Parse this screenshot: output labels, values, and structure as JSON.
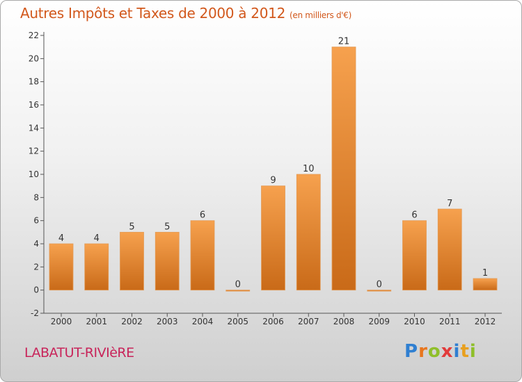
{
  "header": {
    "title": "Autres Impôts et Taxes de 2000 à 2012",
    "unit": "(en milliers d'€)"
  },
  "footer": {
    "place": "LABATUT-RIVIèRE",
    "brand": "Proxiti",
    "brand_letters": [
      "P",
      "r",
      "o",
      "x",
      "i",
      "t",
      "i"
    ],
    "brand_colors": [
      "#2f7fd1",
      "#e8761e",
      "#8fbf2a",
      "#e23b3b",
      "#2f7fd1",
      "#e8a01e",
      "#8fbf2a"
    ]
  },
  "colors": {
    "title": "#d2581c",
    "place": "#c8245a",
    "bar_light": "#f6a14e",
    "bar_dark": "#c96a18"
  },
  "chart_data": {
    "type": "bar",
    "title": "Autres Impôts et Taxes de 2000 à 2012",
    "subtitle": "(en milliers d'€)",
    "categories": [
      "2000",
      "2001",
      "2002",
      "2003",
      "2004",
      "2005",
      "2006",
      "2007",
      "2008",
      "2009",
      "2010",
      "2011",
      "2012"
    ],
    "values": [
      4,
      4,
      5,
      5,
      6,
      0,
      9,
      10,
      21,
      0,
      6,
      7,
      1
    ],
    "yticks": [
      -2,
      0,
      2,
      4,
      6,
      8,
      10,
      12,
      14,
      16,
      18,
      20,
      22
    ],
    "ylim": [
      -2,
      22
    ],
    "grid": false,
    "xlabel": "",
    "ylabel": ""
  }
}
